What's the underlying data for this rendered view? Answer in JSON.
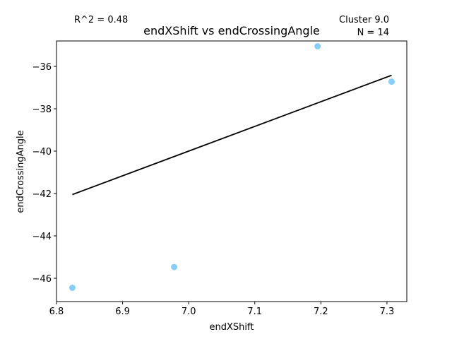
{
  "chart_data": {
    "type": "scatter",
    "title": "endXShift vs endCrossingAngle",
    "xlabel": "endXShift",
    "ylabel": "endCrossingAngle",
    "annotations": {
      "r2": "R^2 = 0.48",
      "cluster": "Cluster 9.0",
      "n": "N = 14"
    },
    "xlim": [
      6.8,
      7.33
    ],
    "ylim": [
      -47.1,
      -34.8
    ],
    "xticks": [
      6.8,
      6.9,
      7.0,
      7.1,
      7.2,
      7.3
    ],
    "xtick_labels": [
      "6.8",
      "6.9",
      "7.0",
      "7.1",
      "7.2",
      "7.3"
    ],
    "yticks": [
      -46,
      -44,
      -42,
      -40,
      -38,
      -36
    ],
    "ytick_labels": [
      "−46",
      "−44",
      "−42",
      "−40",
      "−38",
      "−36"
    ],
    "points": [
      {
        "x": 6.824,
        "y": -46.45
      },
      {
        "x": 6.978,
        "y": -45.47
      },
      {
        "x": 7.195,
        "y": -35.05
      },
      {
        "x": 7.307,
        "y": -36.72
      }
    ],
    "fit_line": {
      "x": [
        6.824,
        7.307
      ],
      "y": [
        -42.05,
        -36.42
      ]
    },
    "point_color": "#87cefa",
    "line_color": "#000000",
    "grid": false,
    "legend": "none"
  }
}
